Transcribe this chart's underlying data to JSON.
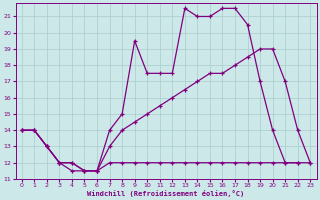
{
  "xlabel": "Windchill (Refroidissement éolien,°C)",
  "bg_color": "#cde8e8",
  "line_color": "#800080",
  "grid_color": "#aacccc",
  "xlim": [
    -0.5,
    23.5
  ],
  "ylim": [
    11,
    21.8
  ],
  "yticks": [
    11,
    12,
    13,
    14,
    15,
    16,
    17,
    18,
    19,
    20,
    21
  ],
  "xticks": [
    0,
    1,
    2,
    3,
    4,
    5,
    6,
    7,
    8,
    9,
    10,
    11,
    12,
    13,
    14,
    15,
    16,
    17,
    18,
    19,
    20,
    21,
    22,
    23
  ],
  "line1_x": [
    0,
    1,
    2,
    3,
    4,
    5,
    6,
    7,
    8,
    9,
    10,
    11,
    12,
    13,
    14,
    15,
    16,
    17,
    18,
    19,
    20,
    21,
    22,
    23
  ],
  "line1_y": [
    14,
    14,
    13,
    12,
    11.5,
    11.5,
    11.5,
    12,
    12,
    12,
    12,
    12,
    12,
    12,
    12,
    12,
    12,
    12,
    12,
    12,
    12,
    12,
    12,
    12
  ],
  "line2_x": [
    0,
    1,
    2,
    3,
    4,
    5,
    6,
    7,
    8,
    9,
    10,
    11,
    12,
    13,
    14,
    15,
    16,
    17,
    18,
    19,
    20,
    21,
    22,
    23
  ],
  "line2_y": [
    14,
    14,
    13,
    12,
    12,
    11.5,
    11.5,
    13,
    14,
    14.5,
    15,
    15.5,
    16,
    16.5,
    17,
    17.5,
    17.5,
    18,
    18.5,
    19,
    19,
    17,
    14,
    12
  ],
  "line3_x": [
    0,
    1,
    2,
    3,
    4,
    5,
    6,
    7,
    8,
    9,
    10,
    11,
    12,
    13,
    14,
    15,
    16,
    17,
    18,
    19,
    20,
    21,
    22
  ],
  "line3_y": [
    14,
    14,
    13,
    12,
    12,
    11.5,
    11.5,
    14,
    15,
    19.5,
    17.5,
    17.5,
    17.5,
    21.5,
    21,
    21,
    21.5,
    21.5,
    20.5,
    17,
    14,
    12,
    12
  ]
}
